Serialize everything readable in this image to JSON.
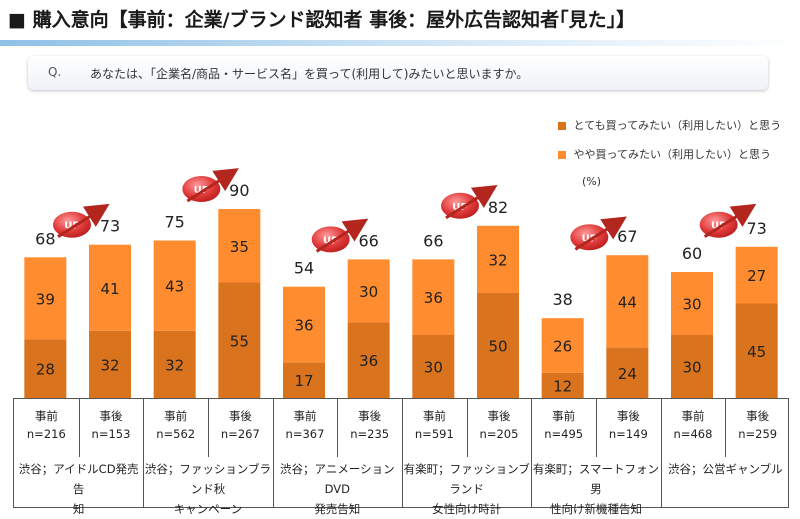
{
  "title": "■ 購入意向【事前：企業/ブランド認知者 事後：屋外広告認知者｢見た｣】",
  "question": {
    "prefix": "Q.",
    "text": "あなたは、「企業名/商品・サービス名」を買って(利用して)みたいと思いますか。"
  },
  "legend": {
    "top_label": "とても買ってみたい（利用したい）と思う",
    "second_label": "やや買ってみたい（利用したい）と思う",
    "unit": "(%)"
  },
  "colors": {
    "dark": "#d9731e",
    "light": "#ff8c2e",
    "badge": "#e03a3a",
    "arrow": "#b3261e"
  },
  "up_label": "UP",
  "chart_data": {
    "type": "bar",
    "stacked": true,
    "categories": [
      "事前 n=216",
      "事後 n=153",
      "事前 n=562",
      "事後 n=267",
      "事前 n=367",
      "事後 n=235",
      "事前 n=591",
      "事後 n=205",
      "事前 n=495",
      "事後 n=149",
      "事前 n=468",
      "事後 n=259"
    ],
    "series": [
      {
        "name": "とても買ってみたい（利用したい）と思う",
        "values": [
          28,
          32,
          32,
          55,
          17,
          36,
          30,
          50,
          12,
          24,
          30,
          45
        ]
      },
      {
        "name": "やや買ってみたい（利用したい）と思う",
        "values": [
          39,
          41,
          43,
          35,
          36,
          30,
          36,
          32,
          26,
          44,
          30,
          27
        ]
      }
    ],
    "totals": [
      68,
      73,
      75,
      90,
      54,
      66,
      66,
      82,
      38,
      67,
      60,
      73
    ],
    "ylim": [
      0,
      100
    ],
    "grid": false,
    "legend_position": "top-right"
  },
  "table": {
    "columns": [
      {
        "label": "事前",
        "n": "n=216"
      },
      {
        "label": "事後",
        "n": "n=153"
      },
      {
        "label": "事前",
        "n": "n=562"
      },
      {
        "label": "事後",
        "n": "n=267"
      },
      {
        "label": "事前",
        "n": "n=367"
      },
      {
        "label": "事後",
        "n": "n=235"
      },
      {
        "label": "事前",
        "n": "n=591"
      },
      {
        "label": "事後",
        "n": "n=205"
      },
      {
        "label": "事前",
        "n": "n=495"
      },
      {
        "label": "事後",
        "n": "n=149"
      },
      {
        "label": "事前",
        "n": "n=468"
      },
      {
        "label": "事後",
        "n": "n=259"
      }
    ],
    "groups": [
      {
        "line1": "渋谷；アイドルCD発売告",
        "line2": "知"
      },
      {
        "line1": "渋谷；ファッションブランド秋",
        "line2": "キャンペーン"
      },
      {
        "line1": "渋谷；アニメーションDVD",
        "line2": "発売告知"
      },
      {
        "line1": "有楽町；ファッションブランド",
        "line2": "女性向け時計"
      },
      {
        "line1": "有楽町；スマートフォン男",
        "line2": "性向け新機種告知"
      },
      {
        "line1": "渋谷；公営ギャンブル",
        "line2": ""
      }
    ]
  }
}
